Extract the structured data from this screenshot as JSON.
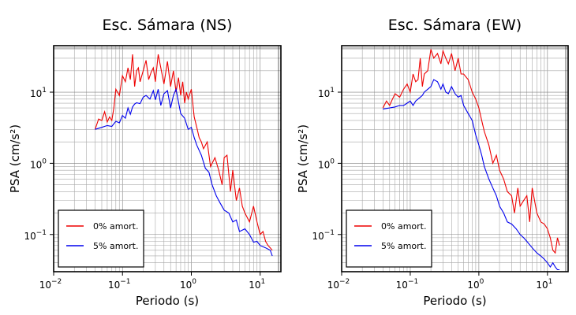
{
  "chart_data": [
    {
      "type": "line",
      "title": "Esc. Sámara (NS)",
      "xlabel": "Periodo (s)",
      "ylabel": "PSA (cm/s²)",
      "x_scale": "log",
      "y_scale": "log",
      "xlim": [
        0.01,
        20
      ],
      "ylim": [
        0.03,
        45
      ],
      "grid": true,
      "legend_position": "bottom-left",
      "xticks": [
        {
          "value": 0.01,
          "base": "10",
          "exp": "−2"
        },
        {
          "value": 0.1,
          "base": "10",
          "exp": "−1"
        },
        {
          "value": 1,
          "base": "10",
          "exp": "0"
        },
        {
          "value": 10,
          "base": "10",
          "exp": "1"
        }
      ],
      "yticks": [
        {
          "value": 0.1,
          "base": "10",
          "exp": "−1"
        },
        {
          "value": 1,
          "base": "10",
          "exp": "0"
        },
        {
          "value": 10,
          "base": "10",
          "exp": "1"
        }
      ],
      "series": [
        {
          "name": "0% amort.",
          "color": "#ee0000",
          "x": [
            0.04,
            0.045,
            0.05,
            0.055,
            0.06,
            0.065,
            0.07,
            0.075,
            0.08,
            0.09,
            0.1,
            0.11,
            0.12,
            0.13,
            0.14,
            0.15,
            0.16,
            0.17,
            0.18,
            0.2,
            0.22,
            0.24,
            0.26,
            0.28,
            0.3,
            0.33,
            0.36,
            0.4,
            0.45,
            0.5,
            0.55,
            0.6,
            0.65,
            0.7,
            0.75,
            0.8,
            0.85,
            0.9,
            1.0,
            1.1,
            1.2,
            1.3,
            1.4,
            1.5,
            1.7,
            1.9,
            2.2,
            2.5,
            2.8,
            3.0,
            3.3,
            3.7,
            4.0,
            4.5,
            5.0,
            5.5,
            6.0,
            7.0,
            8.0,
            9.0,
            10,
            11,
            12,
            13,
            14,
            15
          ],
          "y": [
            3.0,
            4.2,
            4.0,
            5.3,
            3.8,
            4.5,
            4.0,
            6.0,
            11,
            9,
            17,
            14,
            22,
            15,
            34,
            12,
            20,
            22,
            14,
            20,
            28,
            15,
            19,
            22,
            14,
            34,
            22,
            13,
            27,
            12,
            20,
            10,
            16,
            9,
            14,
            7,
            10,
            8,
            11,
            4.5,
            3.2,
            2.3,
            2.0,
            1.6,
            2.0,
            0.9,
            1.2,
            0.8,
            0.5,
            1.2,
            1.3,
            0.4,
            0.8,
            0.3,
            0.45,
            0.25,
            0.2,
            0.15,
            0.25,
            0.15,
            0.1,
            0.11,
            0.08,
            0.07,
            0.065,
            0.06
          ]
        },
        {
          "name": "5% amort.",
          "color": "#0000ee",
          "x": [
            0.04,
            0.05,
            0.06,
            0.07,
            0.08,
            0.09,
            0.1,
            0.11,
            0.12,
            0.13,
            0.14,
            0.15,
            0.16,
            0.18,
            0.2,
            0.22,
            0.25,
            0.28,
            0.3,
            0.33,
            0.36,
            0.4,
            0.45,
            0.5,
            0.55,
            0.6,
            0.7,
            0.8,
            0.9,
            1.0,
            1.1,
            1.2,
            1.4,
            1.6,
            1.8,
            2.0,
            2.3,
            2.6,
            3.0,
            3.5,
            4.0,
            4.5,
            5.0,
            6.0,
            7.0,
            8.0,
            9.0,
            10,
            12,
            14,
            15
          ],
          "y": [
            3.0,
            3.2,
            3.4,
            3.3,
            3.9,
            3.7,
            4.7,
            4.3,
            6.0,
            4.9,
            6.2,
            6.8,
            7.1,
            6.9,
            8.5,
            9.0,
            8.0,
            10.5,
            7.8,
            11.0,
            6.5,
            9.5,
            10.5,
            6.0,
            9.0,
            11.0,
            5.0,
            4.3,
            3.0,
            3.2,
            2.3,
            1.8,
            1.3,
            0.85,
            0.75,
            0.5,
            0.35,
            0.28,
            0.22,
            0.2,
            0.15,
            0.16,
            0.11,
            0.12,
            0.1,
            0.078,
            0.08,
            0.07,
            0.065,
            0.06,
            0.05
          ]
        }
      ]
    },
    {
      "type": "line",
      "title": "Esc. Sámara (EW)",
      "xlabel": "Periodo (s)",
      "ylabel": "PSA (cm/s²)",
      "x_scale": "log",
      "y_scale": "log",
      "xlim": [
        0.01,
        20
      ],
      "ylim": [
        0.03,
        45
      ],
      "grid": true,
      "legend_position": "bottom-left",
      "xticks": [
        {
          "value": 0.01,
          "base": "10",
          "exp": "−2"
        },
        {
          "value": 0.1,
          "base": "10",
          "exp": "−1"
        },
        {
          "value": 1,
          "base": "10",
          "exp": "0"
        },
        {
          "value": 10,
          "base": "10",
          "exp": "1"
        }
      ],
      "yticks": [
        {
          "value": 0.1,
          "base": "10",
          "exp": "−1"
        },
        {
          "value": 1,
          "base": "10",
          "exp": "0"
        },
        {
          "value": 10,
          "base": "10",
          "exp": "1"
        }
      ],
      "series": [
        {
          "name": "0% amort.",
          "color": "#ee0000",
          "x": [
            0.04,
            0.045,
            0.05,
            0.055,
            0.06,
            0.07,
            0.08,
            0.09,
            0.1,
            0.11,
            0.12,
            0.13,
            0.14,
            0.15,
            0.16,
            0.18,
            0.2,
            0.22,
            0.25,
            0.28,
            0.3,
            0.33,
            0.36,
            0.4,
            0.45,
            0.5,
            0.55,
            0.6,
            0.7,
            0.8,
            0.9,
            1.0,
            1.1,
            1.2,
            1.4,
            1.6,
            1.8,
            2.0,
            2.3,
            2.6,
            3.0,
            3.3,
            3.7,
            4.0,
            4.5,
            5.0,
            5.5,
            6.0,
            7.0,
            8.0,
            9.0,
            10,
            11,
            12,
            13,
            14,
            15
          ],
          "y": [
            6.0,
            7.5,
            6.5,
            8.0,
            9.5,
            8.5,
            11,
            13,
            10,
            18,
            14,
            15,
            30,
            12,
            18,
            20,
            40,
            30,
            35,
            25,
            38,
            30,
            25,
            35,
            20,
            30,
            18,
            18,
            15,
            10,
            8,
            6.0,
            4.0,
            2.8,
            1.8,
            1.0,
            1.3,
            0.8,
            0.6,
            0.4,
            0.35,
            0.2,
            0.45,
            0.25,
            0.3,
            0.35,
            0.15,
            0.45,
            0.2,
            0.15,
            0.14,
            0.12,
            0.09,
            0.06,
            0.055,
            0.09,
            0.07
          ]
        },
        {
          "name": "5% amort.",
          "color": "#0000ee",
          "x": [
            0.04,
            0.05,
            0.06,
            0.07,
            0.08,
            0.09,
            0.1,
            0.11,
            0.12,
            0.13,
            0.14,
            0.15,
            0.16,
            0.18,
            0.2,
            0.22,
            0.25,
            0.28,
            0.3,
            0.33,
            0.36,
            0.4,
            0.45,
            0.5,
            0.55,
            0.6,
            0.7,
            0.8,
            0.9,
            1.0,
            1.1,
            1.2,
            1.4,
            1.6,
            1.8,
            2.0,
            2.3,
            2.6,
            3.0,
            3.5,
            4.0,
            4.5,
            5.0,
            6.0,
            7.0,
            8.0,
            9.0,
            10,
            11,
            12,
            13,
            14,
            15
          ],
          "y": [
            5.8,
            6.0,
            6.2,
            6.5,
            6.5,
            7.0,
            7.5,
            6.5,
            7.5,
            8.0,
            8.5,
            9.0,
            10,
            11,
            12,
            15,
            14,
            11,
            13,
            10,
            9.5,
            12,
            9.5,
            8.5,
            9.0,
            6.5,
            5.0,
            4.0,
            2.5,
            1.8,
            1.3,
            0.9,
            0.6,
            0.45,
            0.35,
            0.25,
            0.2,
            0.15,
            0.14,
            0.12,
            0.1,
            0.09,
            0.08,
            0.065,
            0.055,
            0.05,
            0.045,
            0.04,
            0.035,
            0.04,
            0.035,
            0.032,
            0.032
          ]
        }
      ]
    }
  ]
}
